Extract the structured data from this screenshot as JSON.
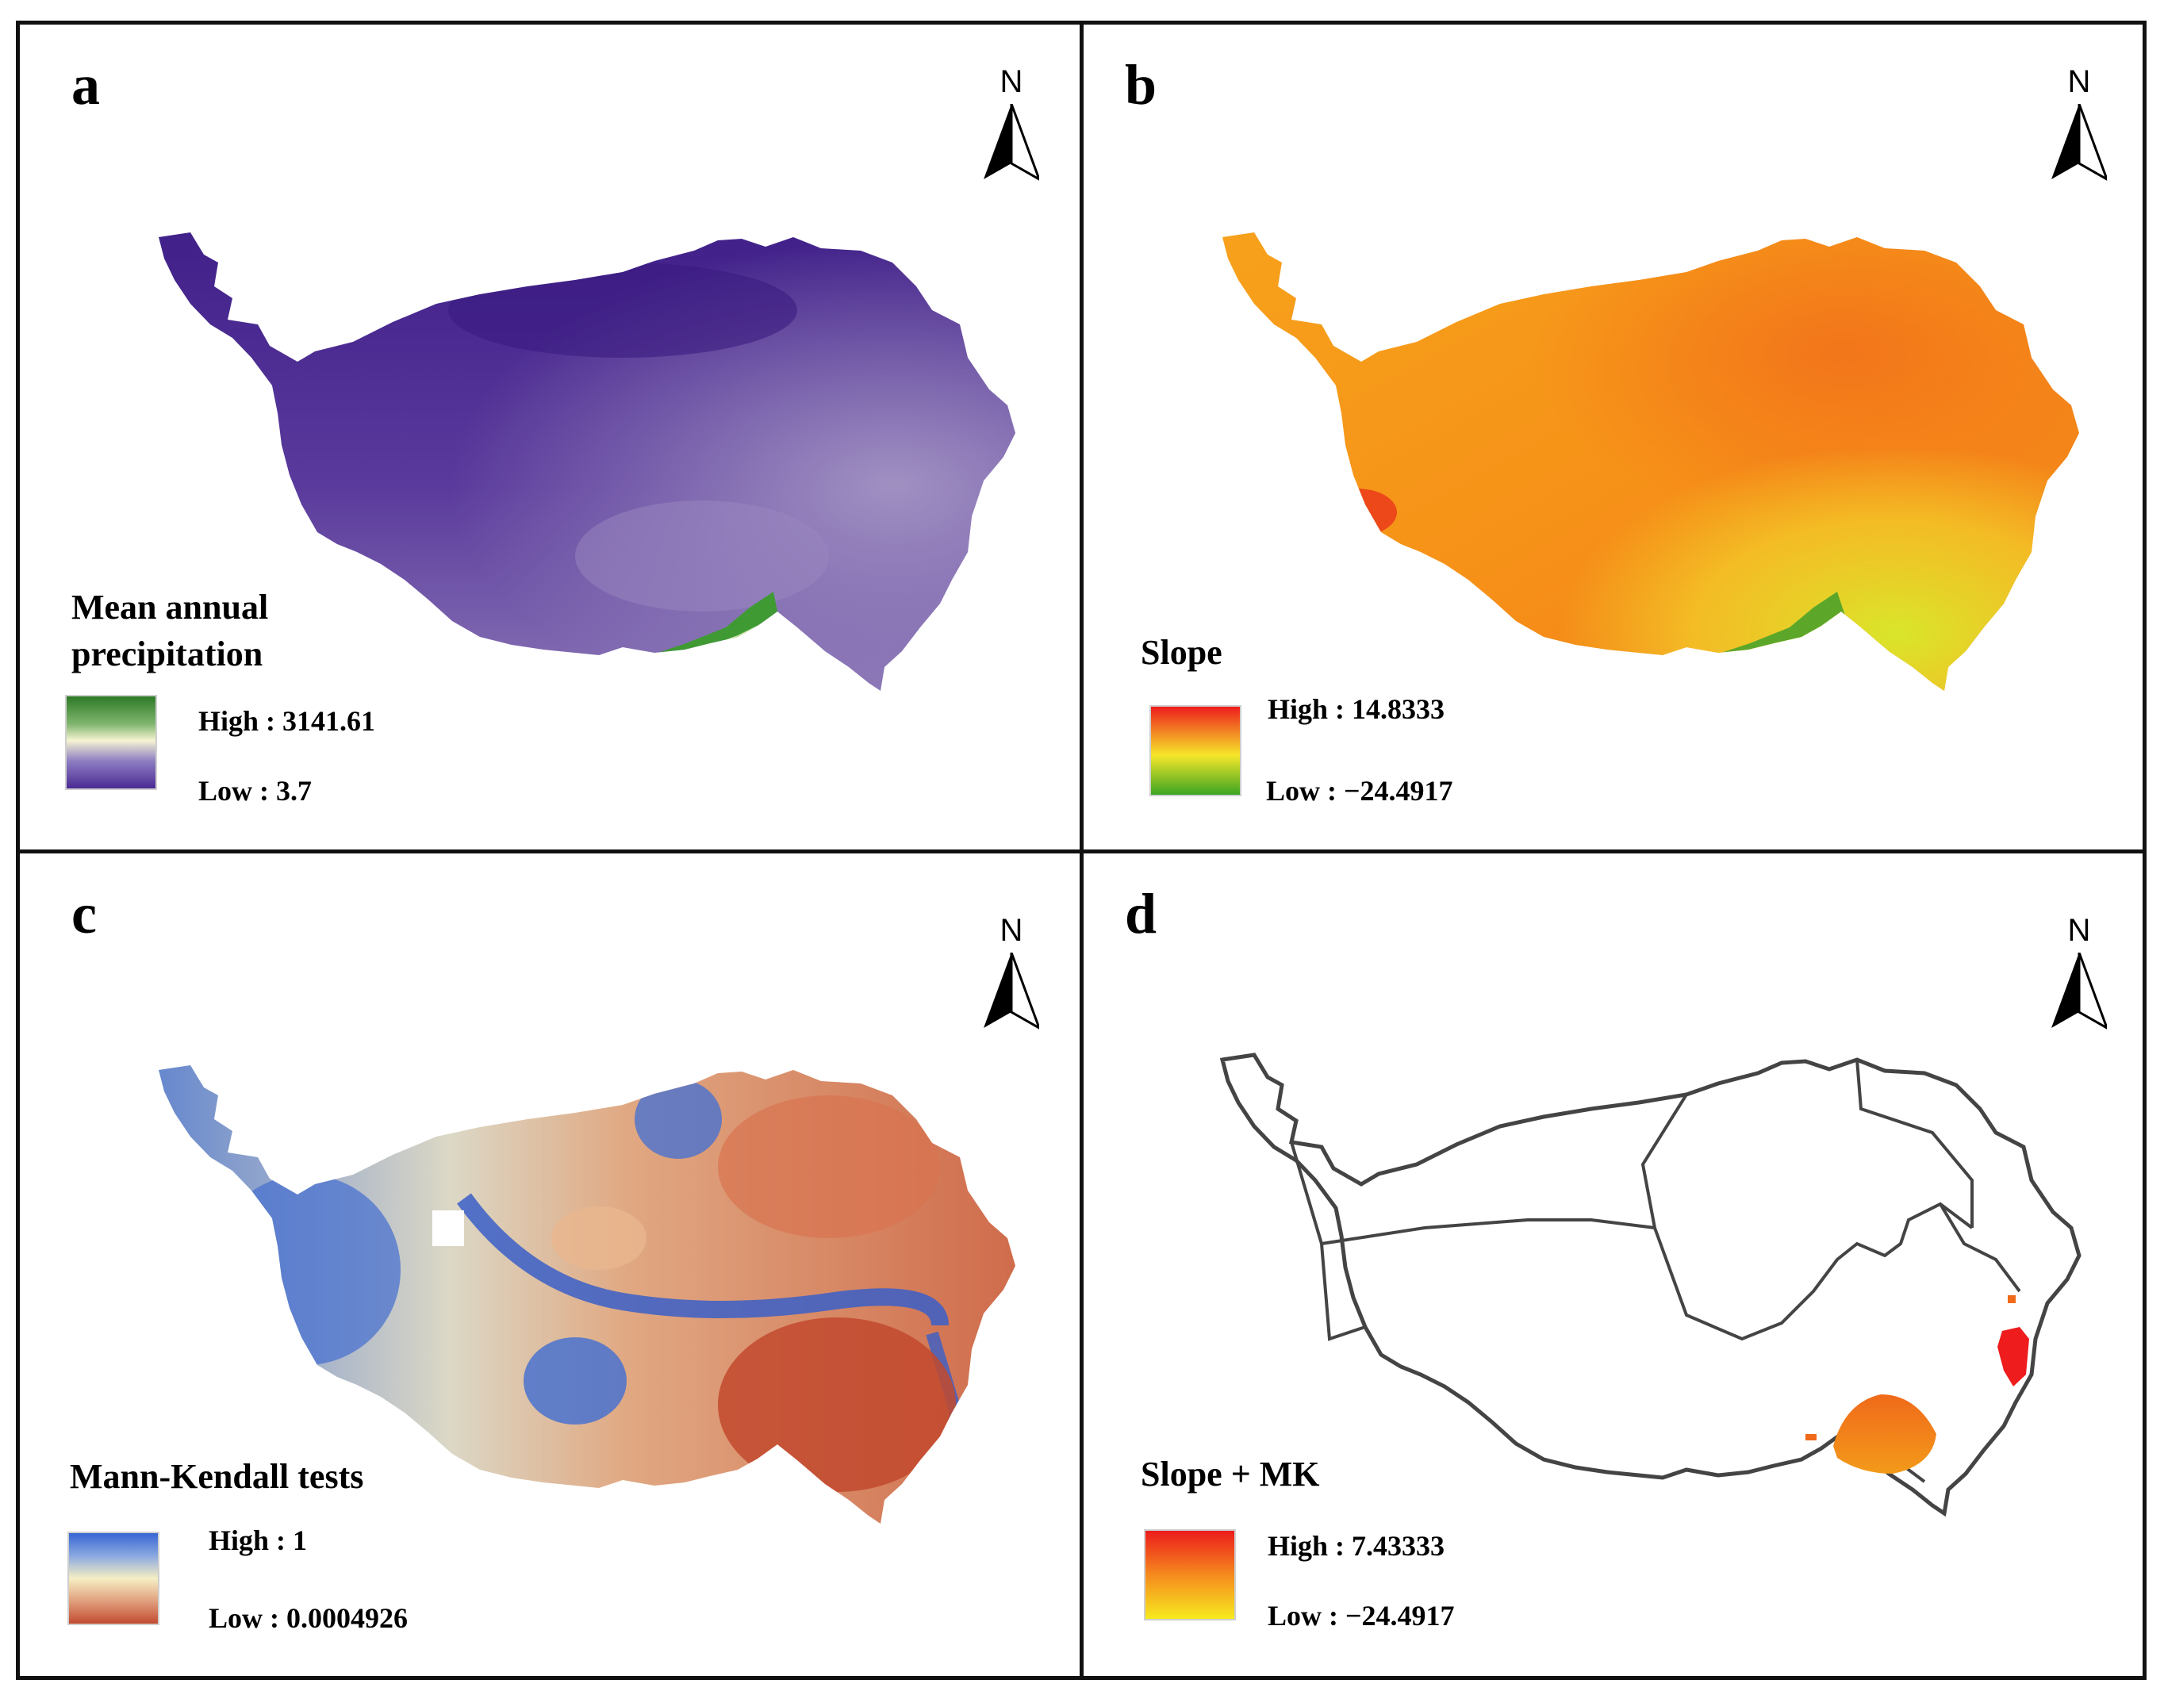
{
  "north_letter": "N",
  "panels": [
    {
      "label": "a",
      "legend_title": "Mean annual\nprecipitation",
      "high": "High : 3141.61",
      "low": "Low :  3.7",
      "ramp": [
        "#2d7a26",
        "#f6f4d2",
        "#4a2a94"
      ]
    },
    {
      "label": "b",
      "legend_title": "Slope",
      "high": "High : 14.8333",
      "low": "Low : −24.4917",
      "ramp": [
        "#ee1c1c",
        "#f6e72a",
        "#3ca522"
      ]
    },
    {
      "label": "c",
      "legend_title": "Mann-Kendall tests",
      "high": "High : 1",
      "low": "Low : 0.0004926",
      "ramp": [
        "#3866d4",
        "#f6efc4",
        "#c34a30"
      ]
    },
    {
      "label": "d",
      "legend_title": "Slope + MK",
      "high": "High : 7.43333",
      "low": "Low : −24.4917",
      "ramp": [
        "#ec1c1c",
        "#f58a1e",
        "#f7ea1e"
      ]
    }
  ]
}
